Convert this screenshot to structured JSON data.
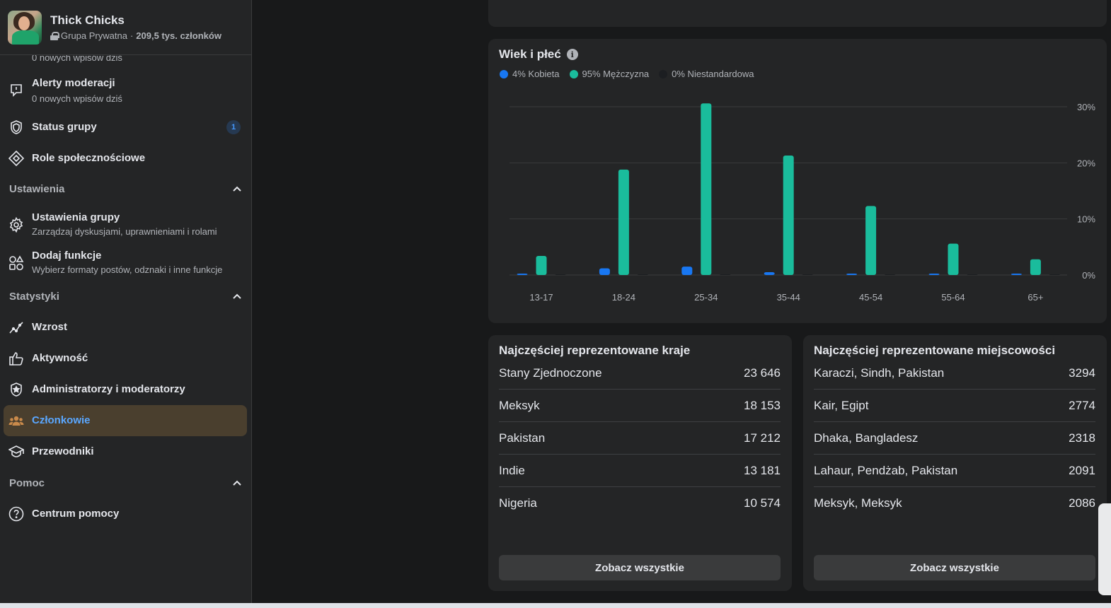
{
  "group": {
    "name": "Thick Chicks",
    "privacy": "Grupa Prywatna",
    "members": "209,5 tys. członków"
  },
  "sidebar": {
    "cut_text": "0 nowych wpisów dziś",
    "moderation_alerts": {
      "label": "Alerty moderacji",
      "sub": "0 nowych wpisów dziś",
      "icon": "flag-speech-icon"
    },
    "group_status": {
      "label": "Status grupy",
      "badge": "1",
      "icon": "shield-icon"
    },
    "community_roles": {
      "label": "Role społecznościowe",
      "icon": "diamond-icon"
    },
    "settings_section": "Ustawienia",
    "group_settings": {
      "label": "Ustawienia grupy",
      "sub": "Zarządzaj dyskusjami, uprawnieniami i rolami",
      "icon": "gear-icon"
    },
    "add_features": {
      "label": "Dodaj funkcje",
      "sub": "Wybierz formaty postów, odznaki i inne funkcje",
      "icon": "shapes-icon"
    },
    "stats_section": "Statystyki",
    "growth": {
      "label": "Wzrost",
      "icon": "trend-icon"
    },
    "activity": {
      "label": "Aktywność",
      "icon": "thumbs-up-icon"
    },
    "admins": {
      "label": "Administratorzy i moderatorzy",
      "icon": "star-shield-icon"
    },
    "members": {
      "label": "Członkowie",
      "icon": "people-icon"
    },
    "guides": {
      "label": "Przewodniki",
      "icon": "graduation-cap-icon"
    },
    "help_section": "Pomoc",
    "help_center": {
      "label": "Centrum pomocy",
      "icon": "question-icon"
    }
  },
  "age_gender": {
    "title": "Wiek i płeć",
    "legend": [
      {
        "label": "4% Kobieta",
        "color": "#1877f2"
      },
      {
        "label": "95% Mężczyzna",
        "color": "#1abc9c"
      },
      {
        "label": "0% Niestandardowa",
        "color": "#1c1e21"
      }
    ]
  },
  "chart_data": {
    "type": "bar",
    "title": "Wiek i płeć",
    "categories": [
      "13-17",
      "18-24",
      "25-34",
      "35-44",
      "45-54",
      "55-64",
      "65+"
    ],
    "series": [
      {
        "name": "Kobieta",
        "color": "#1877f2",
        "values": [
          0.2,
          1.2,
          1.5,
          0.5,
          0.2,
          0.1,
          0.1
        ]
      },
      {
        "name": "Mężczyzna",
        "color": "#1abc9c",
        "values": [
          3.4,
          18.8,
          30.6,
          21.3,
          12.3,
          5.6,
          2.8
        ]
      },
      {
        "name": "Niestandardowa",
        "color": "#1c1e21",
        "values": [
          0,
          0,
          0,
          0,
          0,
          0,
          0
        ]
      }
    ],
    "y_ticks": [
      "0%",
      "10%",
      "20%",
      "30%"
    ],
    "ylim": [
      0,
      30
    ],
    "grid": true,
    "y_axis_side": "right",
    "legend_position": "top-left"
  },
  "countries": {
    "title": "Najczęściej reprezentowane kraje",
    "rows": [
      {
        "name": "Stany Zjednoczone",
        "value": "23 646"
      },
      {
        "name": "Meksyk",
        "value": "18 153"
      },
      {
        "name": "Pakistan",
        "value": "17 212"
      },
      {
        "name": "Indie",
        "value": "13 181"
      },
      {
        "name": "Nigeria",
        "value": "10 574"
      }
    ],
    "button": "Zobacz wszystkie"
  },
  "cities": {
    "title": "Najczęściej reprezentowane miejscowości",
    "rows": [
      {
        "name": "Karaczi, Sindh, Pakistan",
        "value": "3294"
      },
      {
        "name": "Kair, Egipt",
        "value": "2774"
      },
      {
        "name": "Dhaka, Bangladesz",
        "value": "2318"
      },
      {
        "name": "Lahaur, Pendżab, Pakistan",
        "value": "2091"
      },
      {
        "name": "Meksyk, Meksyk",
        "value": "2086"
      }
    ],
    "button": "Zobacz wszystkie"
  }
}
